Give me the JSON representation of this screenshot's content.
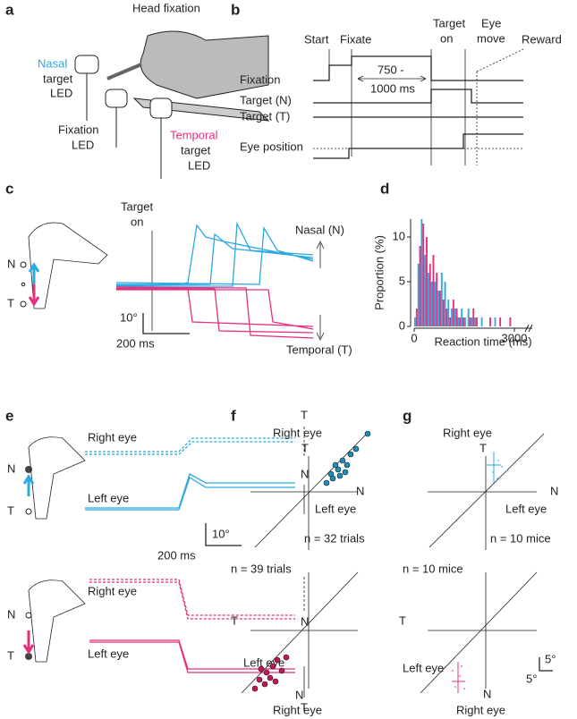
{
  "panels": {
    "a": {
      "label": "a",
      "title": "Head fixation",
      "nasal": [
        "Nasal",
        "target",
        "LED"
      ],
      "fixation": [
        "Fixation",
        "LED"
      ],
      "temporal": [
        "Temporal",
        "target",
        "LED"
      ]
    },
    "b": {
      "label": "b",
      "events": [
        "Start",
        "Fixate",
        "Target",
        "on",
        "Eye",
        "move",
        "Reward"
      ],
      "rows": [
        "Fixation",
        "Target (N)",
        "Target (T)",
        "Eye position"
      ],
      "interval": [
        "750 -",
        "1000 ms"
      ]
    },
    "c": {
      "label": "c",
      "target_on": [
        "Target",
        "on"
      ],
      "nasal": "Nasal (N)",
      "temporal": "Temporal (T)",
      "scale_y": "10°",
      "scale_x": "200 ms",
      "n": "N",
      "t": "T"
    },
    "e": {
      "label": "e",
      "right_eye": "Right eye",
      "left_eye": "Left eye",
      "scale_y": "10°",
      "scale_x": "200 ms",
      "n": "N",
      "t": "T"
    },
    "f": {
      "label": "f",
      "right_eye": "Right eye",
      "left_eye": "Left eye",
      "n": "N",
      "t": "T",
      "count_top": "n = 32 trials",
      "count_bottom": "n = 39 trials"
    },
    "g": {
      "label": "g",
      "right_eye": "Right eye",
      "left_eye": "Left eye",
      "n": "N",
      "t": "T",
      "count_top": "n = 10 mice",
      "count_bottom": "n = 10 mice",
      "scale": "5°"
    }
  },
  "chart_data": {
    "type": "histogram",
    "label": "d",
    "xlabel": "Reaction time (ms)",
    "ylabel": "Proportion (%)",
    "bins": [
      0,
      100,
      200,
      300,
      400,
      500,
      600,
      700,
      800,
      900,
      1000,
      1100,
      1200,
      1300,
      1400,
      1500,
      1600,
      1700,
      1800,
      1900,
      2000,
      2100,
      2200,
      2300,
      2400,
      2500,
      2600,
      2700,
      2800,
      2900,
      3000
    ],
    "series": [
      {
        "color": "#2ca9e1",
        "values": [
          1,
          7,
          12,
          8,
          6,
          5,
          5,
          4,
          6,
          5,
          3,
          2,
          2,
          1,
          2,
          1,
          2,
          1,
          1,
          0,
          1,
          0,
          0,
          0,
          1,
          0,
          0,
          0,
          0,
          0
        ]
      },
      {
        "color": "#e5307d",
        "values": [
          2,
          9,
          11.5,
          10,
          7,
          8,
          6,
          4,
          3,
          2,
          1,
          3,
          2,
          1,
          1,
          0,
          1,
          2,
          1,
          0,
          0,
          0,
          1,
          0,
          0,
          1,
          0,
          0,
          1,
          0
        ]
      }
    ],
    "xlim": [
      0,
      3000
    ],
    "ylim": [
      0,
      12
    ],
    "xticks": [
      0,
      3000
    ],
    "yticks": [
      0,
      5,
      10
    ]
  }
}
